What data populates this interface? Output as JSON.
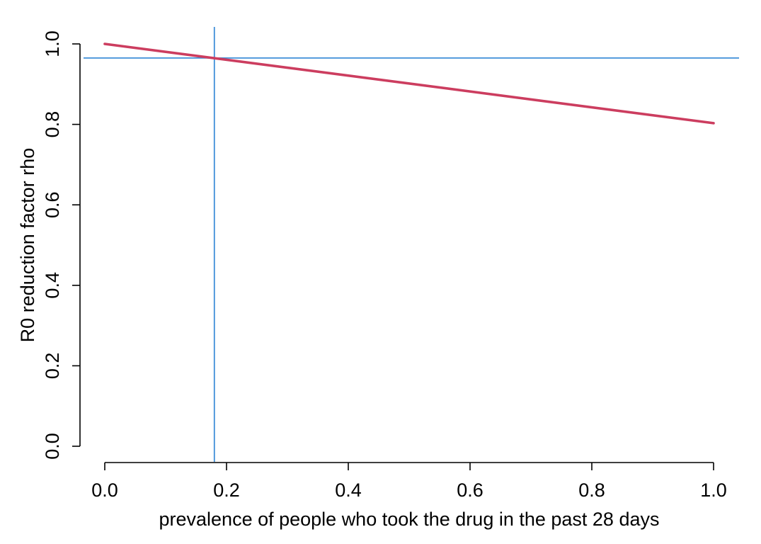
{
  "chart_data": {
    "type": "line",
    "title": "",
    "xlabel": "prevalence of people who took the drug in the past 28 days",
    "ylabel": "R0 reduction factor rho",
    "xlim": [
      0.0,
      1.0
    ],
    "ylim": [
      0.0,
      1.0
    ],
    "x_ticks": [
      "0.0",
      "0.2",
      "0.4",
      "0.6",
      "0.8",
      "1.0"
    ],
    "y_ticks": [
      "0.0",
      "0.2",
      "0.4",
      "0.6",
      "0.8",
      "1.0"
    ],
    "grid": false,
    "series": [
      {
        "color": "#cc3d5f",
        "x": [
          0.0,
          1.0
        ],
        "y": [
          1.0,
          0.803
        ]
      }
    ],
    "reference_lines": {
      "vertical": {
        "x": 0.18,
        "color": "#3f8fd8"
      },
      "horizontal": {
        "y": 0.965,
        "color": "#3f8fd8"
      }
    }
  }
}
